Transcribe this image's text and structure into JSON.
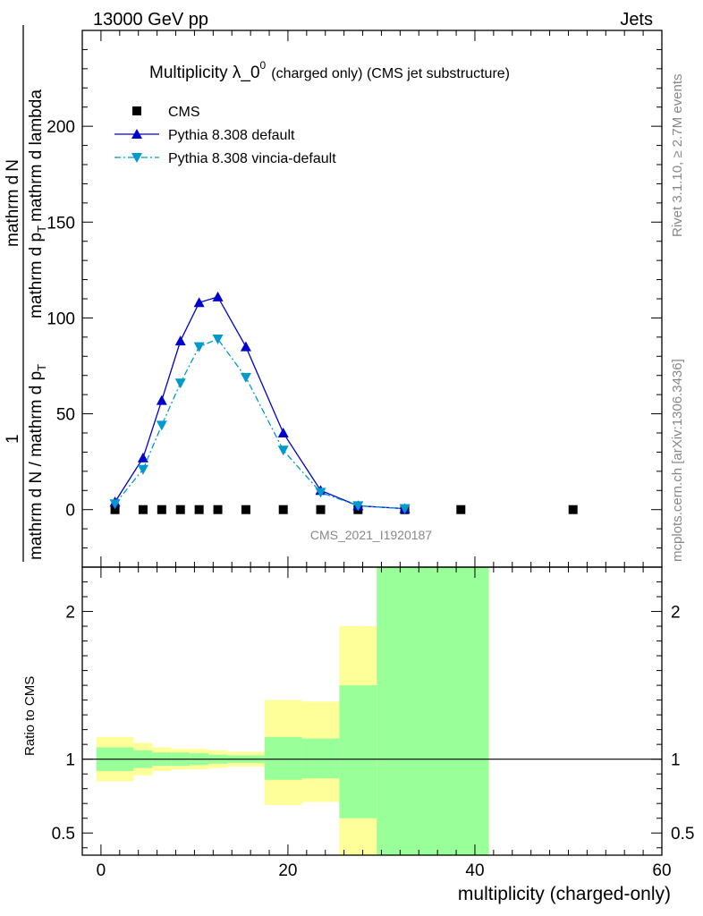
{
  "header": {
    "left": "13000 GeV pp",
    "right": "Jets"
  },
  "title": {
    "main": "Multiplicity λ_0",
    "sup": "0",
    "sub": "(charged only) (CMS jet substructure)"
  },
  "side_labels": {
    "rivet": "Rivet 3.1.10, ≥ 2.7M events",
    "mcplots": "mcplots.cern.ch [arXiv:1306.3436]"
  },
  "watermark": "CMS_2021_I1920187",
  "ylabel_main": {
    "numerator": "1",
    "line1_a": "mathrm d N / mathrm d p",
    "line1_sub": "T",
    "line2_a": "mathrm d",
    "line2_b": "N",
    "line2_c": "mathrm d p",
    "line2_sub": "T",
    "line2_d": "mathrm d lambda"
  },
  "ylabel_ratio": "Ratio to CMS",
  "xlabel": "multiplicity (charged-only)",
  "colors": {
    "cms": "#000000",
    "pythia_default": "#0000cc",
    "pythia_vincia": "#0099cc",
    "band_inner": "#99ff99",
    "band_outer": "#ffff99"
  },
  "chart_data": [
    {
      "type": "scatter",
      "panel": "main",
      "xlim": [
        -2,
        60
      ],
      "ylim": [
        -30,
        250
      ],
      "yticks": [
        0,
        50,
        100,
        150,
        200
      ],
      "legend_position": "top-left",
      "series": [
        {
          "name": "CMS",
          "marker": "square",
          "x": [
            1.5,
            4.5,
            6.5,
            8.5,
            10.5,
            12.5,
            15.5,
            19.5,
            23.5,
            27.5,
            32.5,
            38.5,
            50.5
          ],
          "y": [
            0,
            0,
            0,
            0,
            0,
            0,
            0,
            0,
            0,
            0,
            0,
            0,
            0
          ]
        },
        {
          "name": "Pythia 8.308 default",
          "marker": "triangle-up",
          "line": "solid",
          "x": [
            1.5,
            4.5,
            6.5,
            8.5,
            10.5,
            12.5,
            15.5,
            19.5,
            23.5,
            27.5,
            32.5
          ],
          "y": [
            4,
            27,
            57,
            88,
            108,
            111,
            85,
            40,
            10,
            2,
            0.5
          ]
        },
        {
          "name": "Pythia 8.308 vincia-default",
          "marker": "triangle-down",
          "line": "dashdot",
          "x": [
            1.5,
            4.5,
            6.5,
            8.5,
            10.5,
            12.5,
            15.5,
            19.5,
            23.5,
            27.5,
            32.5
          ],
          "y": [
            3,
            21,
            44,
            66,
            85,
            89,
            69,
            31,
            9,
            2,
            0.5
          ]
        }
      ]
    },
    {
      "type": "area",
      "panel": "ratio",
      "xlim": [
        -2,
        60
      ],
      "ylim": [
        0.35,
        2.3
      ],
      "xticks": [
        0,
        20,
        40,
        60
      ],
      "yticks": [
        0.5,
        1,
        2
      ],
      "reference_line": 1,
      "bins": [
        {
          "x0": -0.5,
          "x1": 3.5,
          "inner": [
            0.92,
            1.08
          ],
          "outer": [
            0.85,
            1.15
          ]
        },
        {
          "x0": 3.5,
          "x1": 5.5,
          "inner": [
            0.94,
            1.06
          ],
          "outer": [
            0.89,
            1.11
          ]
        },
        {
          "x0": 5.5,
          "x1": 7.5,
          "inner": [
            0.955,
            1.045
          ],
          "outer": [
            0.92,
            1.08
          ]
        },
        {
          "x0": 7.5,
          "x1": 9.5,
          "inner": [
            0.955,
            1.045
          ],
          "outer": [
            0.93,
            1.07
          ]
        },
        {
          "x0": 9.5,
          "x1": 11.5,
          "inner": [
            0.96,
            1.04
          ],
          "outer": [
            0.93,
            1.07
          ]
        },
        {
          "x0": 11.5,
          "x1": 13.5,
          "inner": [
            0.97,
            1.03
          ],
          "outer": [
            0.94,
            1.06
          ]
        },
        {
          "x0": 13.5,
          "x1": 17.5,
          "inner": [
            0.975,
            1.025
          ],
          "outer": [
            0.95,
            1.05
          ]
        },
        {
          "x0": 17.5,
          "x1": 21.5,
          "inner": [
            0.86,
            1.15
          ],
          "outer": [
            0.69,
            1.4
          ]
        },
        {
          "x0": 21.5,
          "x1": 25.5,
          "inner": [
            0.87,
            1.14
          ],
          "outer": [
            0.71,
            1.39
          ]
        },
        {
          "x0": 25.5,
          "x1": 29.5,
          "inner": [
            0.6,
            1.5
          ],
          "outer": [
            0.3,
            1.9
          ]
        },
        {
          "x0": 29.5,
          "x1": 41.5,
          "inner": [
            0.2,
            3.0
          ],
          "outer": [
            0.2,
            3.0
          ]
        }
      ]
    }
  ]
}
